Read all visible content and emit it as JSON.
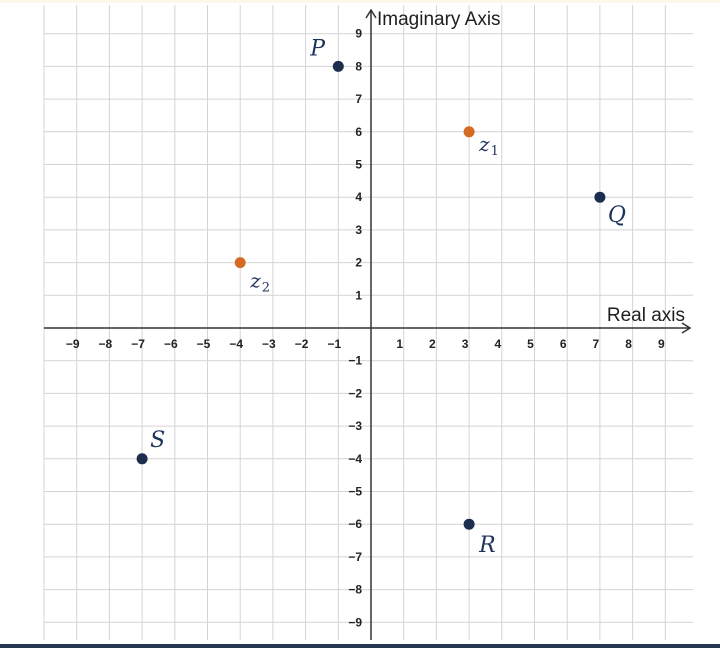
{
  "colors": {
    "background": "#ffffff",
    "grid": "#d4d4d4",
    "axis": "#333333",
    "navy_point": "#1c2e4d",
    "orange_point": "#d66a25",
    "label": "#1e3359"
  },
  "chart_data": {
    "type": "scatter",
    "title": "",
    "xlabel": "Real axis",
    "ylabel": "Imaginary Axis",
    "xlim": [
      -10,
      10
    ],
    "ylim": [
      -10,
      10
    ],
    "grid": true,
    "x_ticks": [
      "−9",
      "−8",
      "−7",
      "−6",
      "−5",
      "−4",
      "−3",
      "−2",
      "−1",
      "1",
      "2",
      "3",
      "4",
      "5",
      "6",
      "7",
      "8",
      "9"
    ],
    "x_tick_values": [
      -9,
      -8,
      -7,
      -6,
      -5,
      -4,
      -3,
      -2,
      -1,
      1,
      2,
      3,
      4,
      5,
      6,
      7,
      8,
      9
    ],
    "y_ticks": [
      "9",
      "8",
      "7",
      "6",
      "5",
      "4",
      "3",
      "2",
      "1",
      "−1",
      "−2",
      "−3",
      "−4",
      "−5",
      "−6",
      "−7",
      "−8",
      "−9"
    ],
    "y_tick_values": [
      9,
      8,
      7,
      6,
      5,
      4,
      3,
      2,
      1,
      -1,
      -2,
      -3,
      -4,
      -5,
      -6,
      -7,
      -8,
      -9
    ],
    "points": [
      {
        "name": "P",
        "label": "P",
        "x": -1,
        "y": 8,
        "color": "#1c2e4d"
      },
      {
        "name": "z1",
        "label": "z",
        "sub": "1",
        "x": 3,
        "y": 6,
        "color": "#d66a25"
      },
      {
        "name": "Q",
        "label": "Q",
        "x": 7,
        "y": 4,
        "color": "#1c2e4d"
      },
      {
        "name": "z2",
        "label": "z",
        "sub": "2",
        "x": -4,
        "y": 2,
        "color": "#d66a25"
      },
      {
        "name": "S",
        "label": "S",
        "x": -7,
        "y": -4,
        "color": "#1c2e4d"
      },
      {
        "name": "R",
        "label": "R",
        "x": 3,
        "y": -6,
        "color": "#1c2e4d"
      }
    ]
  }
}
